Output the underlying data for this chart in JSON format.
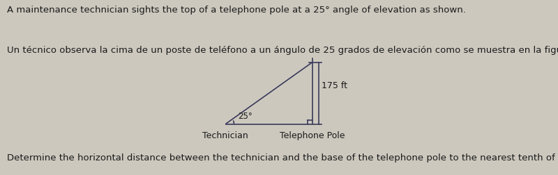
{
  "title_en": "A maintenance technician sights the top of a telephone pole at a 25° angle of elevation as shown.",
  "title_es": "Un técnico observa la cima de un poste de teléfono a un ángulo de 25 grados de elevación como se muestra en la figura siguiente.",
  "footer": "Determine the horizontal distance between the technician and the base of the telephone pole to the nearest tenth of a foot.",
  "angle_label": "25°",
  "pole_label": "175 ft",
  "technician_label": "Technician",
  "pole_base_label": "Telephone Pole",
  "bg_color": "#ccc8be",
  "line_color": "#3a3a5a",
  "text_color": "#1a1a1a",
  "font_size_title": 9.5,
  "font_size_label": 9.0,
  "font_size_angle": 8.5,
  "fig_width": 8.0,
  "fig_height": 2.52
}
